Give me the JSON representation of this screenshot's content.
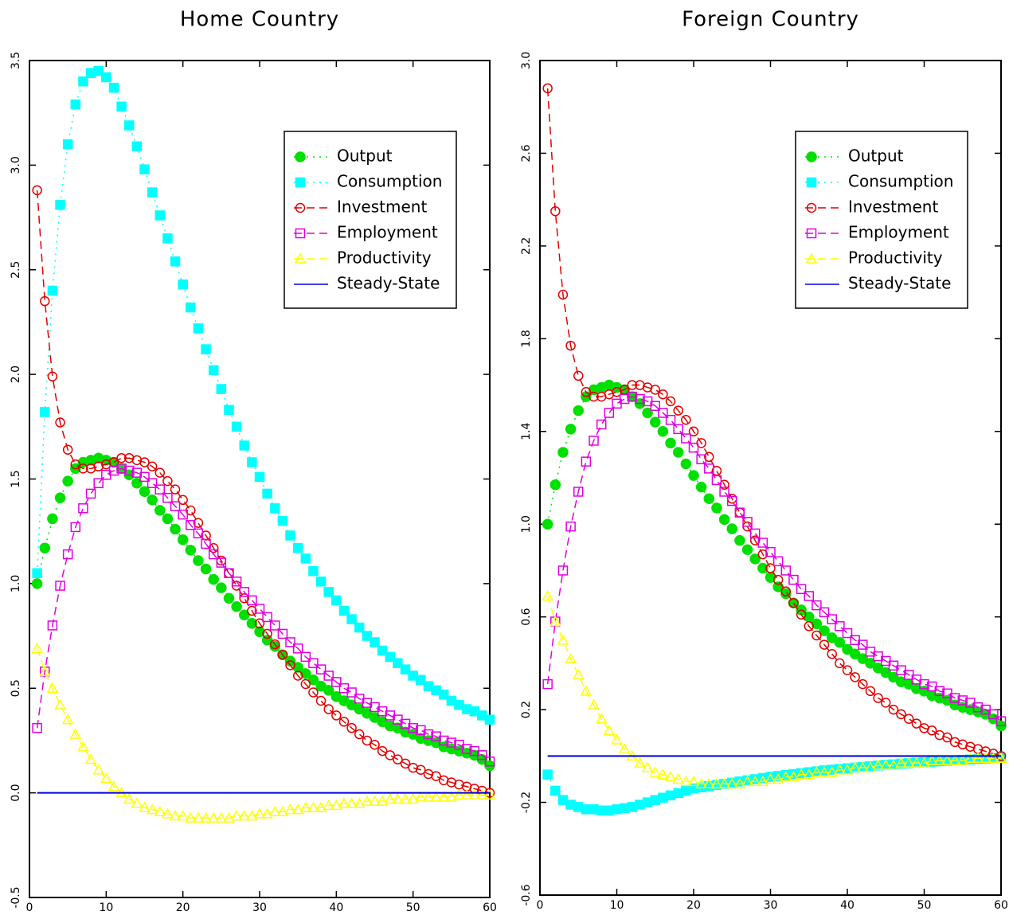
{
  "chart_data": [
    {
      "type": "line",
      "title": "Home Country",
      "x": [
        1,
        2,
        3,
        4,
        5,
        6,
        7,
        8,
        9,
        10,
        11,
        12,
        13,
        14,
        15,
        16,
        17,
        18,
        19,
        20,
        21,
        22,
        23,
        24,
        25,
        26,
        27,
        28,
        29,
        30,
        31,
        32,
        33,
        34,
        35,
        36,
        37,
        38,
        39,
        40,
        41,
        42,
        43,
        44,
        45,
        46,
        47,
        48,
        49,
        50,
        51,
        52,
        53,
        54,
        55,
        56,
        57,
        58,
        59,
        60
      ],
      "xlim": [
        0,
        60
      ],
      "xticks": [
        0,
        10,
        20,
        30,
        40,
        50,
        60
      ],
      "ylim": [
        -0.5,
        3.5
      ],
      "yticks": [
        -0.5,
        {
          "value": 0,
          "label": "0.0"
        },
        0.5,
        {
          "value": 1,
          "label": "1.0"
        },
        1.5,
        {
          "value": 2,
          "label": "2.0"
        },
        2.5,
        {
          "value": 3,
          "label": "3.0"
        },
        3.5
      ],
      "legend": "upper right",
      "series": [
        {
          "name": "Output",
          "color": "#00e000",
          "marker": "circle",
          "filled": true,
          "line": "dotted",
          "values": [
            1.0,
            1.17,
            1.31,
            1.41,
            1.49,
            1.55,
            1.58,
            1.59,
            1.6,
            1.59,
            1.58,
            1.55,
            1.52,
            1.48,
            1.44,
            1.4,
            1.35,
            1.31,
            1.26,
            1.21,
            1.16,
            1.11,
            1.07,
            1.02,
            0.98,
            0.93,
            0.89,
            0.85,
            0.81,
            0.77,
            0.73,
            0.7,
            0.66,
            0.63,
            0.6,
            0.57,
            0.54,
            0.51,
            0.49,
            0.46,
            0.44,
            0.42,
            0.4,
            0.38,
            0.36,
            0.34,
            0.32,
            0.31,
            0.29,
            0.28,
            0.26,
            0.25,
            0.24,
            0.22,
            0.21,
            0.2,
            0.19,
            0.18,
            0.16,
            0.13
          ]
        },
        {
          "name": "Consumption",
          "color": "#00ffff",
          "marker": "square",
          "filled": true,
          "line": "dotted",
          "values": [
            1.05,
            1.82,
            2.4,
            2.81,
            3.1,
            3.29,
            3.4,
            3.44,
            3.45,
            3.42,
            3.37,
            3.28,
            3.19,
            3.09,
            2.98,
            2.87,
            2.76,
            2.65,
            2.54,
            2.43,
            2.32,
            2.22,
            2.12,
            2.02,
            1.93,
            1.83,
            1.75,
            1.66,
            1.58,
            1.51,
            1.43,
            1.36,
            1.3,
            1.23,
            1.17,
            1.12,
            1.06,
            1.01,
            0.96,
            0.92,
            0.87,
            0.83,
            0.79,
            0.75,
            0.72,
            0.68,
            0.65,
            0.62,
            0.59,
            0.56,
            0.54,
            0.51,
            0.49,
            0.47,
            0.44,
            0.42,
            0.4,
            0.39,
            0.37,
            0.35
          ]
        },
        {
          "name": "Investment",
          "color": "#e00000",
          "marker": "circle",
          "filled": false,
          "line": "dashed",
          "values": [
            2.88,
            2.35,
            1.99,
            1.77,
            1.64,
            1.57,
            1.55,
            1.55,
            1.56,
            1.57,
            1.58,
            1.6,
            1.6,
            1.59,
            1.58,
            1.56,
            1.53,
            1.49,
            1.45,
            1.4,
            1.35,
            1.29,
            1.23,
            1.17,
            1.11,
            1.05,
            0.99,
            0.93,
            0.87,
            0.81,
            0.76,
            0.71,
            0.66,
            0.61,
            0.56,
            0.52,
            0.48,
            0.44,
            0.4,
            0.37,
            0.34,
            0.31,
            0.28,
            0.25,
            0.23,
            0.2,
            0.18,
            0.16,
            0.14,
            0.12,
            0.11,
            0.09,
            0.08,
            0.06,
            0.05,
            0.04,
            0.03,
            0.02,
            0.01,
            0.0
          ]
        },
        {
          "name": "Employment",
          "color": "#e000e0",
          "marker": "square",
          "filled": false,
          "line": "dashed",
          "values": [
            0.31,
            0.58,
            0.8,
            0.99,
            1.14,
            1.27,
            1.36,
            1.43,
            1.48,
            1.52,
            1.54,
            1.55,
            1.54,
            1.53,
            1.51,
            1.48,
            1.45,
            1.41,
            1.37,
            1.33,
            1.28,
            1.24,
            1.19,
            1.14,
            1.1,
            1.05,
            1.01,
            0.96,
            0.92,
            0.88,
            0.84,
            0.8,
            0.76,
            0.72,
            0.69,
            0.65,
            0.62,
            0.59,
            0.56,
            0.53,
            0.5,
            0.48,
            0.45,
            0.43,
            0.41,
            0.39,
            0.37,
            0.35,
            0.33,
            0.31,
            0.3,
            0.28,
            0.27,
            0.25,
            0.24,
            0.23,
            0.21,
            0.2,
            0.18,
            0.15
          ]
        },
        {
          "name": "Productivity",
          "color": "#ffff00",
          "marker": "triangle",
          "filled": false,
          "line": "dashed",
          "values": [
            0.69,
            0.58,
            0.5,
            0.42,
            0.35,
            0.28,
            0.22,
            0.16,
            0.11,
            0.07,
            0.03,
            0.0,
            -0.03,
            -0.05,
            -0.07,
            -0.08,
            -0.09,
            -0.1,
            -0.11,
            -0.11,
            -0.12,
            -0.12,
            -0.12,
            -0.12,
            -0.12,
            -0.12,
            -0.11,
            -0.11,
            -0.11,
            -0.1,
            -0.1,
            -0.09,
            -0.09,
            -0.08,
            -0.08,
            -0.07,
            -0.07,
            -0.07,
            -0.06,
            -0.06,
            -0.05,
            -0.05,
            -0.05,
            -0.04,
            -0.04,
            -0.04,
            -0.03,
            -0.03,
            -0.03,
            -0.03,
            -0.02,
            -0.02,
            -0.02,
            -0.02,
            -0.02,
            -0.01,
            -0.01,
            -0.01,
            -0.01,
            -0.01
          ]
        },
        {
          "name": "Steady-State",
          "color": "#0000e0",
          "marker": "none",
          "filled": false,
          "line": "solid",
          "x": [
            1,
            60
          ],
          "values": [
            0,
            0
          ]
        }
      ]
    },
    {
      "type": "line",
      "title": "Foreign Country",
      "x": [
        1,
        2,
        3,
        4,
        5,
        6,
        7,
        8,
        9,
        10,
        11,
        12,
        13,
        14,
        15,
        16,
        17,
        18,
        19,
        20,
        21,
        22,
        23,
        24,
        25,
        26,
        27,
        28,
        29,
        30,
        31,
        32,
        33,
        34,
        35,
        36,
        37,
        38,
        39,
        40,
        41,
        42,
        43,
        44,
        45,
        46,
        47,
        48,
        49,
        50,
        51,
        52,
        53,
        54,
        55,
        56,
        57,
        58,
        59,
        60
      ],
      "xlim": [
        0,
        60
      ],
      "xticks": [
        0,
        10,
        20,
        30,
        40,
        50,
        60
      ],
      "ylim": [
        -0.6,
        3.0
      ],
      "yticks": [
        -0.6,
        -0.2,
        0.2,
        0.6,
        {
          "value": 1,
          "label": "1.0"
        },
        1.4,
        1.8,
        2.2,
        2.6,
        {
          "value": 3,
          "label": "3.0"
        }
      ],
      "legend": "upper right",
      "series": [
        {
          "name": "Output",
          "color": "#00e000",
          "marker": "circle",
          "filled": true,
          "line": "dotted",
          "values": [
            1.0,
            1.17,
            1.31,
            1.41,
            1.49,
            1.55,
            1.58,
            1.59,
            1.6,
            1.59,
            1.58,
            1.55,
            1.52,
            1.48,
            1.44,
            1.4,
            1.35,
            1.31,
            1.26,
            1.21,
            1.16,
            1.11,
            1.07,
            1.02,
            0.98,
            0.93,
            0.89,
            0.85,
            0.81,
            0.77,
            0.73,
            0.7,
            0.66,
            0.63,
            0.6,
            0.57,
            0.54,
            0.51,
            0.49,
            0.46,
            0.44,
            0.42,
            0.4,
            0.38,
            0.36,
            0.34,
            0.32,
            0.31,
            0.29,
            0.28,
            0.26,
            0.25,
            0.24,
            0.22,
            0.21,
            0.2,
            0.19,
            0.18,
            0.16,
            0.13
          ]
        },
        {
          "name": "Consumption",
          "color": "#00ffff",
          "marker": "square",
          "filled": true,
          "line": "dotted",
          "values": [
            -0.08,
            -0.15,
            -0.19,
            -0.21,
            -0.22,
            -0.23,
            -0.23,
            -0.235,
            -0.235,
            -0.23,
            -0.225,
            -0.22,
            -0.21,
            -0.2,
            -0.19,
            -0.18,
            -0.17,
            -0.16,
            -0.15,
            -0.14,
            -0.135,
            -0.13,
            -0.125,
            -0.12,
            -0.115,
            -0.11,
            -0.105,
            -0.1,
            -0.095,
            -0.09,
            -0.086,
            -0.082,
            -0.078,
            -0.074,
            -0.07,
            -0.066,
            -0.062,
            -0.059,
            -0.056,
            -0.053,
            -0.05,
            -0.047,
            -0.044,
            -0.041,
            -0.038,
            -0.036,
            -0.033,
            -0.031,
            -0.029,
            -0.027,
            -0.025,
            -0.023,
            -0.021,
            -0.019,
            -0.017,
            -0.015,
            -0.013,
            -0.011,
            -0.009,
            -0.008
          ]
        },
        {
          "name": "Investment",
          "color": "#e00000",
          "marker": "circle",
          "filled": false,
          "line": "dashed",
          "values": [
            2.88,
            2.35,
            1.99,
            1.77,
            1.64,
            1.57,
            1.55,
            1.55,
            1.56,
            1.57,
            1.58,
            1.6,
            1.6,
            1.59,
            1.58,
            1.56,
            1.53,
            1.49,
            1.45,
            1.4,
            1.35,
            1.29,
            1.23,
            1.17,
            1.11,
            1.05,
            0.99,
            0.93,
            0.87,
            0.81,
            0.76,
            0.71,
            0.66,
            0.61,
            0.56,
            0.52,
            0.48,
            0.44,
            0.4,
            0.37,
            0.34,
            0.31,
            0.28,
            0.25,
            0.23,
            0.2,
            0.18,
            0.16,
            0.14,
            0.12,
            0.11,
            0.09,
            0.08,
            0.06,
            0.05,
            0.04,
            0.03,
            0.02,
            0.01,
            0.0
          ]
        },
        {
          "name": "Employment",
          "color": "#e000e0",
          "marker": "square",
          "filled": false,
          "line": "dashed",
          "values": [
            0.31,
            0.58,
            0.8,
            0.99,
            1.14,
            1.27,
            1.36,
            1.43,
            1.48,
            1.52,
            1.54,
            1.55,
            1.54,
            1.53,
            1.51,
            1.48,
            1.45,
            1.41,
            1.37,
            1.33,
            1.28,
            1.24,
            1.19,
            1.14,
            1.1,
            1.05,
            1.01,
            0.96,
            0.92,
            0.88,
            0.84,
            0.8,
            0.76,
            0.72,
            0.69,
            0.65,
            0.62,
            0.59,
            0.56,
            0.53,
            0.5,
            0.48,
            0.45,
            0.43,
            0.41,
            0.39,
            0.37,
            0.35,
            0.33,
            0.31,
            0.3,
            0.28,
            0.27,
            0.25,
            0.24,
            0.23,
            0.21,
            0.2,
            0.18,
            0.15
          ]
        },
        {
          "name": "Productivity",
          "color": "#ffff00",
          "marker": "triangle",
          "filled": false,
          "line": "dashed",
          "values": [
            0.69,
            0.58,
            0.5,
            0.42,
            0.35,
            0.28,
            0.22,
            0.16,
            0.11,
            0.07,
            0.03,
            0.0,
            -0.03,
            -0.05,
            -0.07,
            -0.08,
            -0.09,
            -0.1,
            -0.11,
            -0.11,
            -0.12,
            -0.12,
            -0.12,
            -0.12,
            -0.12,
            -0.12,
            -0.11,
            -0.11,
            -0.11,
            -0.1,
            -0.1,
            -0.09,
            -0.09,
            -0.08,
            -0.08,
            -0.07,
            -0.07,
            -0.07,
            -0.06,
            -0.06,
            -0.05,
            -0.05,
            -0.05,
            -0.04,
            -0.04,
            -0.04,
            -0.03,
            -0.03,
            -0.03,
            -0.03,
            -0.02,
            -0.02,
            -0.02,
            -0.02,
            -0.02,
            -0.01,
            -0.01,
            -0.01,
            -0.01,
            -0.01
          ]
        },
        {
          "name": "Steady-State",
          "color": "#0000e0",
          "marker": "none",
          "filled": false,
          "line": "solid",
          "x": [
            1,
            60
          ],
          "values": [
            0,
            0
          ]
        }
      ]
    }
  ]
}
